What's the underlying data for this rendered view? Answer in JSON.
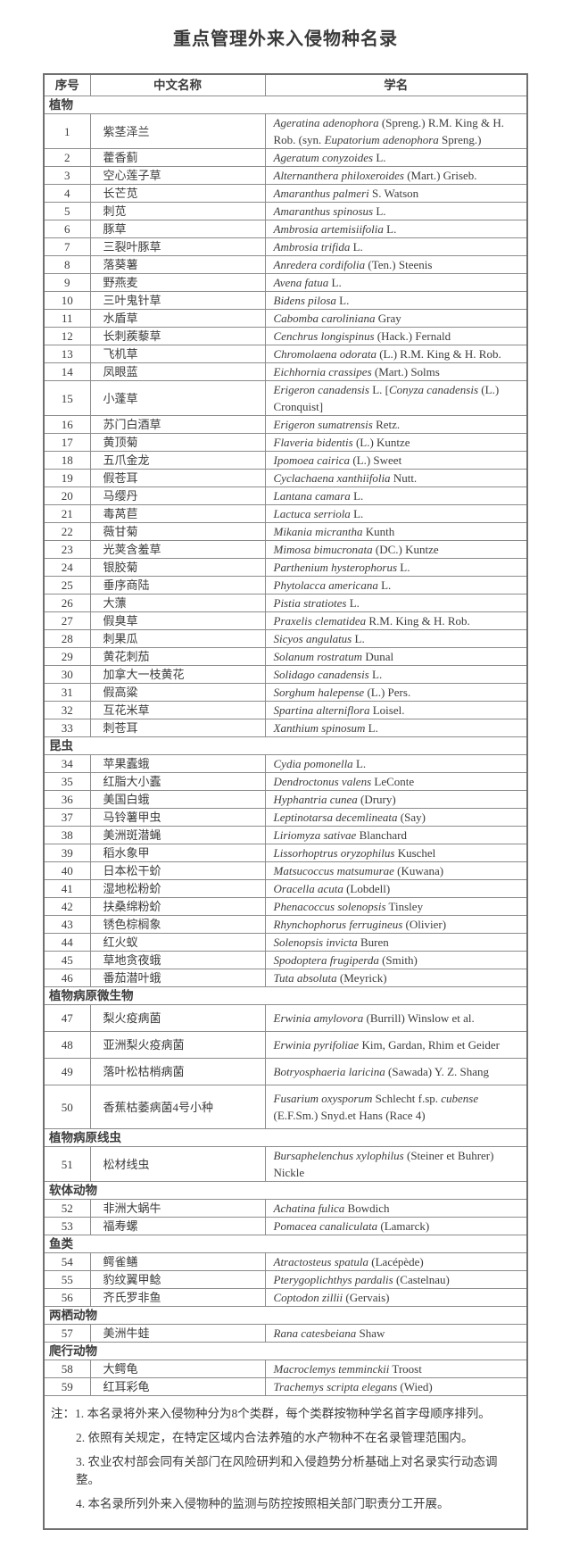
{
  "title": "重点管理外来入侵物种名录",
  "colors": {
    "text": "#3c3c3c",
    "table_border": "#707070",
    "grid_line": "#8c8c8c",
    "background": "#ffffff"
  },
  "table": {
    "headers": [
      "序号",
      "中文名称",
      "学名"
    ],
    "sections": [
      {
        "name": "植物",
        "rows": [
          {
            "no": "1",
            "cn": "紫茎泽兰",
            "sci": [
              [
                "i",
                "Ageratina adenophora"
              ],
              [
                "r",
                " (Spreng.) R.M. King & H. Rob. (syn. "
              ],
              [
                "i",
                "Eupatorium adenophora"
              ],
              [
                "r",
                " Spreng.)"
              ]
            ]
          },
          {
            "no": "2",
            "cn": "藿香蓟",
            "sci": [
              [
                "i",
                "Ageratum conyzoides"
              ],
              [
                "r",
                " L."
              ]
            ]
          },
          {
            "no": "3",
            "cn": "空心莲子草",
            "sci": [
              [
                "i",
                "Alternanthera philoxeroides"
              ],
              [
                "r",
                " (Mart.) Griseb."
              ]
            ]
          },
          {
            "no": "4",
            "cn": "长芒苋",
            "sci": [
              [
                "i",
                "Amaranthus palmeri"
              ],
              [
                "r",
                " S. Watson"
              ]
            ]
          },
          {
            "no": "5",
            "cn": "刺苋",
            "sci": [
              [
                "i",
                "Amaranthus spinosus"
              ],
              [
                "r",
                " L."
              ]
            ]
          },
          {
            "no": "6",
            "cn": "豚草",
            "sci": [
              [
                "i",
                "Ambrosia artemisiifolia"
              ],
              [
                "r",
                " L."
              ]
            ]
          },
          {
            "no": "7",
            "cn": "三裂叶豚草",
            "sci": [
              [
                "i",
                "Ambrosia trifida"
              ],
              [
                "r",
                " L."
              ]
            ]
          },
          {
            "no": "8",
            "cn": "落葵薯",
            "sci": [
              [
                "i",
                "Anredera cordifolia"
              ],
              [
                "r",
                " (Ten.) Steenis"
              ]
            ]
          },
          {
            "no": "9",
            "cn": "野燕麦",
            "sci": [
              [
                "i",
                "Avena fatua"
              ],
              [
                "r",
                " L."
              ]
            ]
          },
          {
            "no": "10",
            "cn": "三叶鬼针草",
            "sci": [
              [
                "i",
                "Bidens pilosa"
              ],
              [
                "r",
                " L."
              ]
            ]
          },
          {
            "no": "11",
            "cn": "水盾草",
            "sci": [
              [
                "i",
                "Cabomba caroliniana"
              ],
              [
                "r",
                " Gray"
              ]
            ]
          },
          {
            "no": "12",
            "cn": "长刺蒺藜草",
            "sci": [
              [
                "i",
                "Cenchrus longispinus"
              ],
              [
                "r",
                " (Hack.) Fernald"
              ]
            ]
          },
          {
            "no": "13",
            "cn": "飞机草",
            "sci": [
              [
                "i",
                "Chromolaena odorata"
              ],
              [
                "r",
                " (L.) R.M. King & H. Rob."
              ]
            ]
          },
          {
            "no": "14",
            "cn": "凤眼蓝",
            "sci": [
              [
                "i",
                "Eichhornia crassipes"
              ],
              [
                "r",
                " (Mart.) Solms"
              ]
            ]
          },
          {
            "no": "15",
            "cn": "小蓬草",
            "sci": [
              [
                "i",
                "Erigeron canadensis"
              ],
              [
                "r",
                " L. ["
              ],
              [
                "i",
                "Conyza canadensis"
              ],
              [
                "r",
                " (L.) Cronquist]"
              ]
            ]
          },
          {
            "no": "16",
            "cn": "苏门白酒草",
            "sci": [
              [
                "i",
                "Erigeron sumatrensis"
              ],
              [
                "r",
                " Retz."
              ]
            ]
          },
          {
            "no": "17",
            "cn": "黄顶菊",
            "sci": [
              [
                "i",
                "Flaveria bidentis"
              ],
              [
                "r",
                " (L.) Kuntze"
              ]
            ]
          },
          {
            "no": "18",
            "cn": "五爪金龙",
            "sci": [
              [
                "i",
                "Ipomoea cairica"
              ],
              [
                "r",
                " (L.) Sweet"
              ]
            ]
          },
          {
            "no": "19",
            "cn": "假苍耳",
            "sci": [
              [
                "i",
                "Cyclachaena xanthiifolia"
              ],
              [
                "r",
                " Nutt."
              ]
            ]
          },
          {
            "no": "20",
            "cn": "马缨丹",
            "sci": [
              [
                "i",
                "Lantana camara"
              ],
              [
                "r",
                " L."
              ]
            ]
          },
          {
            "no": "21",
            "cn": "毒莴苣",
            "sci": [
              [
                "i",
                "Lactuca serriola"
              ],
              [
                "r",
                " L."
              ]
            ]
          },
          {
            "no": "22",
            "cn": "薇甘菊",
            "sci": [
              [
                "i",
                "Mikania micrantha"
              ],
              [
                "r",
                " Kunth"
              ]
            ]
          },
          {
            "no": "23",
            "cn": "光荚含羞草",
            "sci": [
              [
                "i",
                "Mimosa bimucronata"
              ],
              [
                "r",
                " (DC.) Kuntze"
              ]
            ]
          },
          {
            "no": "24",
            "cn": "银胶菊",
            "sci": [
              [
                "i",
                "Parthenium hysterophorus"
              ],
              [
                "r",
                " L."
              ]
            ]
          },
          {
            "no": "25",
            "cn": "垂序商陆",
            "sci": [
              [
                "i",
                "Phytolacca americana"
              ],
              [
                "r",
                " L."
              ]
            ]
          },
          {
            "no": "26",
            "cn": "大薸",
            "sci": [
              [
                "i",
                "Pistia stratiotes"
              ],
              [
                "r",
                " L."
              ]
            ]
          },
          {
            "no": "27",
            "cn": "假臭草",
            "sci": [
              [
                "i",
                "Praxelis clematidea"
              ],
              [
                "r",
                " R.M. King & H. Rob."
              ]
            ]
          },
          {
            "no": "28",
            "cn": "刺果瓜",
            "sci": [
              [
                "i",
                "Sicyos angulatus"
              ],
              [
                "r",
                " L."
              ]
            ]
          },
          {
            "no": "29",
            "cn": "黄花刺茄",
            "sci": [
              [
                "i",
                "Solanum rostratum"
              ],
              [
                "r",
                " Dunal"
              ]
            ]
          },
          {
            "no": "30",
            "cn": "加拿大一枝黄花",
            "sci": [
              [
                "i",
                "Solidago canadensis"
              ],
              [
                "r",
                " L."
              ]
            ]
          },
          {
            "no": "31",
            "cn": "假高粱",
            "sci": [
              [
                "i",
                "Sorghum halepense"
              ],
              [
                "r",
                " (L.) Pers."
              ]
            ]
          },
          {
            "no": "32",
            "cn": "互花米草",
            "sci": [
              [
                "i",
                "Spartina alterniflora"
              ],
              [
                "r",
                " Loisel."
              ]
            ]
          },
          {
            "no": "33",
            "cn": "刺苍耳",
            "sci": [
              [
                "i",
                "Xanthium spinosum"
              ],
              [
                "r",
                " L."
              ]
            ]
          }
        ]
      },
      {
        "name": "昆虫",
        "rows": [
          {
            "no": "34",
            "cn": "苹果蠹蛾",
            "sci": [
              [
                "i",
                "Cydia pomonella"
              ],
              [
                "r",
                " L."
              ]
            ]
          },
          {
            "no": "35",
            "cn": "红脂大小蠹",
            "sci": [
              [
                "i",
                "Dendroctonus valens"
              ],
              [
                "r",
                " LeConte"
              ]
            ]
          },
          {
            "no": "36",
            "cn": "美国白蛾",
            "sci": [
              [
                "i",
                "Hyphantria cunea"
              ],
              [
                "r",
                " (Drury)"
              ]
            ]
          },
          {
            "no": "37",
            "cn": "马铃薯甲虫",
            "sci": [
              [
                "i",
                "Leptinotarsa decemlineata"
              ],
              [
                "r",
                " (Say)"
              ]
            ]
          },
          {
            "no": "38",
            "cn": "美洲斑潜蝇",
            "sci": [
              [
                "i",
                "Liriomyza sativae"
              ],
              [
                "r",
                " Blanchard"
              ]
            ]
          },
          {
            "no": "39",
            "cn": "稻水象甲",
            "sci": [
              [
                "i",
                "Lissorhoptrus oryzophilus"
              ],
              [
                "r",
                " Kuschel"
              ]
            ]
          },
          {
            "no": "40",
            "cn": "日本松干蚧",
            "sci": [
              [
                "i",
                "Matsucoccus matsumurae"
              ],
              [
                "r",
                " (Kuwana)"
              ]
            ]
          },
          {
            "no": "41",
            "cn": "湿地松粉蚧",
            "sci": [
              [
                "i",
                "Oracella acuta"
              ],
              [
                "r",
                " (Lobdell)"
              ]
            ]
          },
          {
            "no": "42",
            "cn": "扶桑绵粉蚧",
            "sci": [
              [
                "i",
                "Phenacoccus solenopsis"
              ],
              [
                "r",
                " Tinsley"
              ]
            ]
          },
          {
            "no": "43",
            "cn": "锈色棕榈象",
            "sci": [
              [
                "i",
                "Rhynchophorus ferrugineus"
              ],
              [
                "r",
                " (Olivier)"
              ]
            ]
          },
          {
            "no": "44",
            "cn": "红火蚁",
            "sci": [
              [
                "i",
                "Solenopsis invicta"
              ],
              [
                "r",
                " Buren"
              ]
            ]
          },
          {
            "no": "45",
            "cn": "草地贪夜蛾",
            "sci": [
              [
                "i",
                "Spodoptera frugiperda"
              ],
              [
                "r",
                " (Smith)"
              ]
            ]
          },
          {
            "no": "46",
            "cn": "番茄潜叶蛾",
            "sci": [
              [
                "i",
                "Tuta absoluta"
              ],
              [
                "r",
                " (Meyrick)"
              ]
            ]
          }
        ]
      },
      {
        "name": "植物病原微生物",
        "rows": [
          {
            "no": "47",
            "cn": "梨火疫病菌",
            "sci": [
              [
                "i",
                "Erwinia amylovora"
              ],
              [
                "r",
                " (Burrill) Winslow et al."
              ]
            ]
          },
          {
            "no": "48",
            "cn": "亚洲梨火疫病菌",
            "sci": [
              [
                "i",
                "Erwinia pyrifoliae"
              ],
              [
                "r",
                " Kim, Gardan, Rhim et Geider"
              ]
            ]
          },
          {
            "no": "49",
            "cn": "落叶松枯梢病菌",
            "sci": [
              [
                "i",
                "Botryosphaeria laricina"
              ],
              [
                "r",
                " (Sawada) Y. Z. Shang"
              ]
            ]
          },
          {
            "no": "50",
            "cn": "香蕉枯萎病菌4号小种",
            "sci": [
              [
                "i",
                "Fusarium oxysporum"
              ],
              [
                "r",
                " Schlecht f.sp. "
              ],
              [
                "i",
                "cubense"
              ],
              [
                "r",
                " (E.F.Sm.) Snyd.et Hans (Race 4)"
              ]
            ]
          }
        ]
      },
      {
        "name": "植物病原线虫",
        "rows": [
          {
            "no": "51",
            "cn": "松材线虫",
            "sci": [
              [
                "i",
                "Bursaphelenchus xylophilus"
              ],
              [
                "r",
                " (Steiner et Buhrer) Nickle"
              ]
            ]
          }
        ]
      },
      {
        "name": "软体动物",
        "rows": [
          {
            "no": "52",
            "cn": "非洲大蜗牛",
            "sci": [
              [
                "i",
                "Achatina fulica"
              ],
              [
                "r",
                " Bowdich"
              ]
            ]
          },
          {
            "no": "53",
            "cn": "福寿螺",
            "sci": [
              [
                "i",
                "Pomacea canaliculata"
              ],
              [
                "r",
                " (Lamarck)"
              ]
            ]
          }
        ]
      },
      {
        "name": "鱼类",
        "rows": [
          {
            "no": "54",
            "cn": "鳄雀鳝",
            "sci": [
              [
                "i",
                "Atractosteus spatula"
              ],
              [
                "r",
                " (Lacépède)"
              ]
            ]
          },
          {
            "no": "55",
            "cn": "豹纹翼甲鲶",
            "sci": [
              [
                "i",
                "Pterygoplichthys pardalis"
              ],
              [
                "r",
                " (Castelnau)"
              ]
            ]
          },
          {
            "no": "56",
            "cn": "齐氏罗非鱼",
            "sci": [
              [
                "i",
                "Coptodon zillii"
              ],
              [
                "r",
                " (Gervais)"
              ]
            ]
          }
        ]
      },
      {
        "name": "两栖动物",
        "rows": [
          {
            "no": "57",
            "cn": "美洲牛蛙",
            "sci": [
              [
                "i",
                "Rana catesbeiana"
              ],
              [
                "r",
                " Shaw"
              ]
            ]
          }
        ]
      },
      {
        "name": "爬行动物",
        "rows": [
          {
            "no": "58",
            "cn": "大鳄龟",
            "sci": [
              [
                "i",
                "Macroclemys temminckii"
              ],
              [
                "r",
                " Troost"
              ]
            ]
          },
          {
            "no": "59",
            "cn": "红耳彩龟",
            "sci": [
              [
                "i",
                "Trachemys scripta elegans"
              ],
              [
                "r",
                " (Wied)"
              ]
            ]
          }
        ]
      }
    ],
    "notes": [
      "注：1. 本名录将外来入侵物种分为8个类群，每个类群按物种学名首字母顺序排列。",
      "2. 依照有关规定，在特定区域内合法养殖的水产物种不在名录管理范围内。",
      "3. 农业农村部会同有关部门在风险研判和入侵趋势分析基础上对名录实行动态调整。",
      "4. 本名录所列外来入侵物种的监测与防控按照相关部门职责分工开展。"
    ]
  }
}
